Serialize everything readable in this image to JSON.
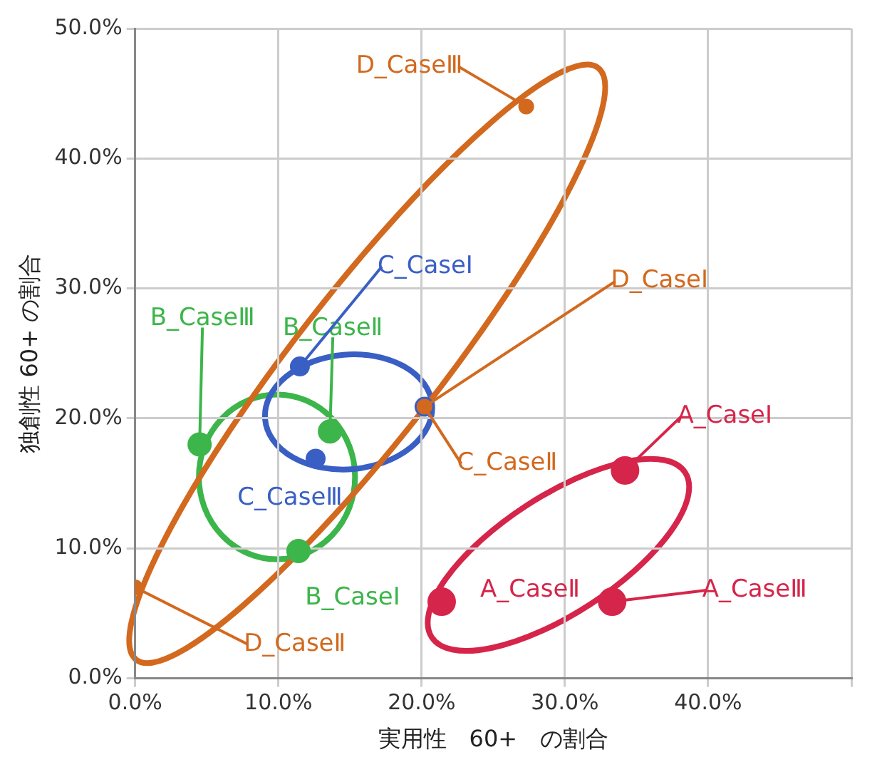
{
  "chart_data": {
    "type": "scatter",
    "xlabel": "実用性　60+　の割合",
    "ylabel": "独創性 60+ の割合",
    "xlim": [
      0,
      50
    ],
    "ylim": [
      0,
      50
    ],
    "xticks": [
      {
        "value": 0,
        "label": "0.0%"
      },
      {
        "value": 10,
        "label": "10.0%"
      },
      {
        "value": 20,
        "label": "20.0%"
      },
      {
        "value": 30,
        "label": "30.0%"
      },
      {
        "value": 40,
        "label": "40.0%"
      },
      {
        "value": 50,
        "label": null
      }
    ],
    "yticks": [
      {
        "value": 0,
        "label": "0.0%"
      },
      {
        "value": 10,
        "label": "10.0%"
      },
      {
        "value": 20,
        "label": "20.0%"
      },
      {
        "value": 30,
        "label": "30.0%"
      },
      {
        "value": 40,
        "label": "40.0%"
      },
      {
        "value": 50,
        "label": "50.0%"
      }
    ],
    "grid": true,
    "legend": false,
    "marker": "circle",
    "series": [
      {
        "color": "#d6254a",
        "x": [
          34.2,
          21.4,
          33.3
        ],
        "values": [
          16.0,
          5.9,
          5.9
        ]
      },
      {
        "color": "#3cb54a",
        "x": [
          11.4,
          13.6,
          4.5
        ],
        "values": [
          9.8,
          19.0,
          18.0
        ]
      },
      {
        "color": "#3a5fc4",
        "x": [
          11.5,
          20.2,
          12.6
        ],
        "values": [
          24.0,
          20.9,
          16.9
        ]
      },
      {
        "color": "#d2691e",
        "x": [
          20.2,
          0.0,
          27.3
        ],
        "values": [
          20.9,
          7.0,
          44.0
        ]
      }
    ],
    "annotations": [
      {
        "text": "A_CaseⅠ",
        "x": 34.2,
        "y": 16.0
      },
      {
        "text": "A_CaseⅡ",
        "x": 21.4,
        "y": 5.9
      },
      {
        "text": "A_CaseⅢ",
        "x": 33.3,
        "y": 5.9
      },
      {
        "text": "B_CaseⅠ",
        "x": 11.4,
        "y": 9.8
      },
      {
        "text": "B_CaseⅡ",
        "x": 13.6,
        "y": 19.0
      },
      {
        "text": "B_CaseⅢ",
        "x": 4.5,
        "y": 18.0
      },
      {
        "text": "C_CaseⅠ",
        "x": 11.5,
        "y": 24.0
      },
      {
        "text": "C_CaseⅡ",
        "x": 20.2,
        "y": 20.9
      },
      {
        "text": "C_CaseⅢ",
        "x": 12.6,
        "y": 16.9
      },
      {
        "text": "D_CaseⅠ",
        "x": 20.2,
        "y": 20.9
      },
      {
        "text": "D_CaseⅡ",
        "x": 0.0,
        "y": 7.0
      },
      {
        "text": "D_CaseⅢ",
        "x": 27.3,
        "y": 44.0
      }
    ]
  }
}
